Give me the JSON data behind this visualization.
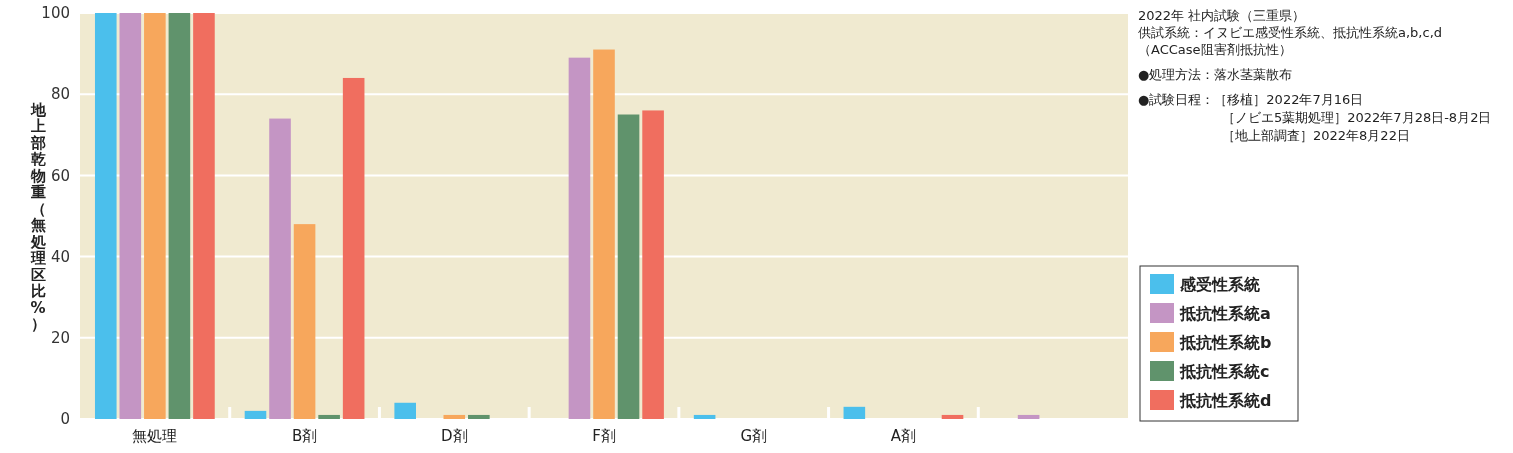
{
  "chart_data": {
    "type": "bar",
    "ylabel": "地上部乾物重（無処理区比%）",
    "categories": [
      "無処理",
      "B剤",
      "D剤",
      "F剤",
      "G剤",
      "A剤",
      null
    ],
    "series": [
      {
        "name": "感受性系統",
        "color": "#4bbfec",
        "values": [
          100,
          2,
          4,
          0,
          1,
          3,
          0
        ]
      },
      {
        "name": "抵抗性系統a",
        "color": "#c495c4",
        "values": [
          100,
          74,
          0,
          89,
          0,
          0,
          1
        ]
      },
      {
        "name": "抵抗性系統b",
        "color": "#f7a75c",
        "values": [
          100,
          48,
          1,
          91,
          0,
          0,
          0
        ]
      },
      {
        "name": "抵抗性系統c",
        "color": "#60936c",
        "values": [
          100,
          1,
          1,
          75,
          0,
          0,
          0
        ]
      },
      {
        "name": "抵抗性系統d",
        "color": "#f06e5f",
        "values": [
          100,
          84,
          0,
          76,
          0,
          1,
          0
        ]
      }
    ],
    "ylim": [
      0,
      100
    ],
    "yticks": [
      0,
      20,
      40,
      60,
      80,
      100
    ],
    "grid": "y",
    "legend": "right",
    "annotations": [
      "2022年 社内試験（三重県）",
      "供試系統：イヌビエ感受性系統、抵抗性系統a,b,c,d",
      "（ACCase阻害剤抵抗性）",
      "●処理方法：落水茎葉散布",
      "●試験日程：［移植］2022年7月16日",
      "［ノビエ5葉期処理］2022年7月28日-8月2日",
      "［地上部調査］2022年8月22日"
    ]
  }
}
